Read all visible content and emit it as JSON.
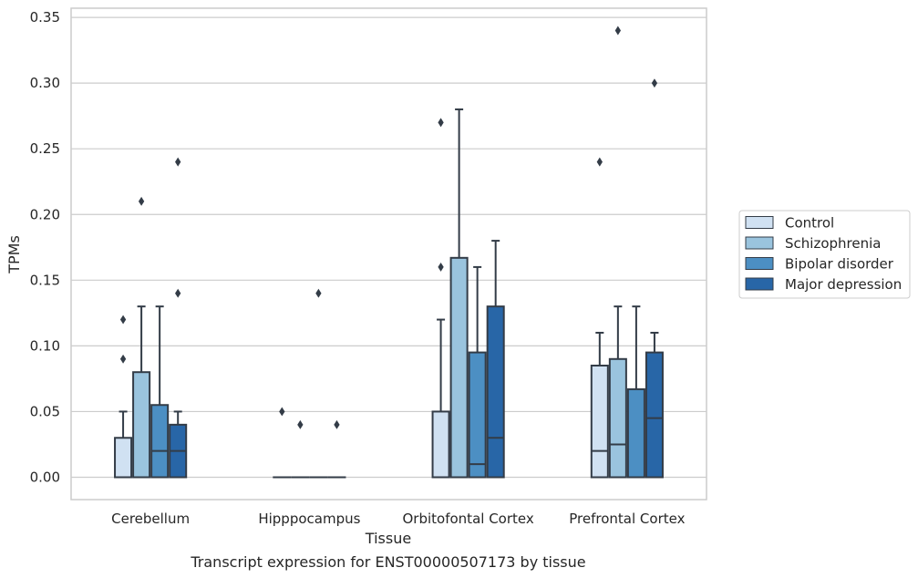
{
  "caption": "Transcript expression for ENST00000507173 by tissue",
  "chart_data": {
    "type": "box",
    "xlabel": "Tissue",
    "ylabel": "TPMs",
    "ylim": [
      -0.017,
      0.357
    ],
    "yticks": [
      "0.00",
      "0.05",
      "0.10",
      "0.15",
      "0.20",
      "0.25",
      "0.30",
      "0.35"
    ],
    "ytick_values": [
      0,
      0.05,
      0.1,
      0.15,
      0.2,
      0.25,
      0.3,
      0.35
    ],
    "grid": "horizontal",
    "legend_position": "right",
    "categories": [
      "Cerebellum",
      "Hipppocampus",
      "Orbitofontal Cortex",
      "Prefrontal Cortex"
    ],
    "series": [
      {
        "name": "Control",
        "color": "#d0e1f2",
        "boxes": [
          {
            "min": 0,
            "q1": 0,
            "median": 0,
            "q3": 0.03,
            "max": 0.05,
            "outliers": [
              0.09,
              0.12
            ]
          },
          {
            "min": 0,
            "q1": 0,
            "median": 0,
            "q3": 0,
            "max": 0,
            "outliers": [
              0.05
            ]
          },
          {
            "min": 0,
            "q1": 0,
            "median": 0,
            "q3": 0.05,
            "max": 0.12,
            "outliers": [
              0.16,
              0.27
            ]
          },
          {
            "min": 0,
            "q1": 0,
            "median": 0.02,
            "q3": 0.085,
            "max": 0.11,
            "outliers": [
              0.24
            ]
          }
        ]
      },
      {
        "name": "Schizophrenia",
        "color": "#9ac4de",
        "boxes": [
          {
            "min": 0,
            "q1": 0,
            "median": 0,
            "q3": 0.08,
            "max": 0.13,
            "outliers": [
              0.21
            ]
          },
          {
            "min": 0,
            "q1": 0,
            "median": 0,
            "q3": 0,
            "max": 0,
            "outliers": [
              0.04
            ]
          },
          {
            "min": 0,
            "q1": 0,
            "median": 0,
            "q3": 0.167,
            "max": 0.28,
            "outliers": []
          },
          {
            "min": 0,
            "q1": 0,
            "median": 0.025,
            "q3": 0.09,
            "max": 0.13,
            "outliers": [
              0.34
            ]
          }
        ]
      },
      {
        "name": "Bipolar disorder",
        "color": "#4c8fc3",
        "boxes": [
          {
            "min": 0,
            "q1": 0,
            "median": 0.02,
            "q3": 0.055,
            "max": 0.13,
            "outliers": []
          },
          {
            "min": 0,
            "q1": 0,
            "median": 0,
            "q3": 0,
            "max": 0,
            "outliers": [
              0.14
            ]
          },
          {
            "min": 0,
            "q1": 0,
            "median": 0.01,
            "q3": 0.095,
            "max": 0.16,
            "outliers": []
          },
          {
            "min": 0,
            "q1": 0,
            "median": 0,
            "q3": 0.067,
            "max": 0.13,
            "outliers": []
          }
        ]
      },
      {
        "name": "Major depression",
        "color": "#2866a7",
        "boxes": [
          {
            "min": 0,
            "q1": 0,
            "median": 0.02,
            "q3": 0.04,
            "max": 0.05,
            "outliers": [
              0.14,
              0.24
            ]
          },
          {
            "min": 0,
            "q1": 0,
            "median": 0,
            "q3": 0,
            "max": 0,
            "outliers": [
              0.04
            ]
          },
          {
            "min": 0,
            "q1": 0,
            "median": 0.03,
            "q3": 0.13,
            "max": 0.18,
            "outliers": []
          },
          {
            "min": 0,
            "q1": 0,
            "median": 0.045,
            "q3": 0.095,
            "max": 0.11,
            "outliers": [
              0.3
            ]
          }
        ]
      }
    ]
  }
}
